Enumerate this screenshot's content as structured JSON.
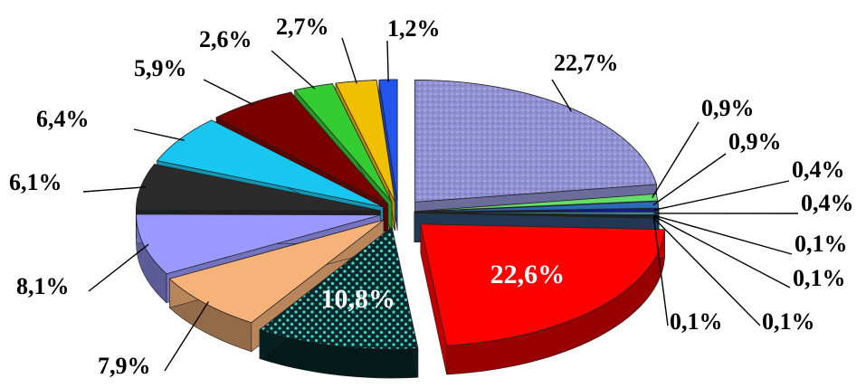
{
  "chart_data": {
    "type": "pie",
    "style": "3d-exploded",
    "slices": [
      {
        "label": "22,7%",
        "value": 22.7,
        "color": "#8f8fd0"
      },
      {
        "label": "0,9%",
        "value": 0.9,
        "color": "#66dd66"
      },
      {
        "label": "0,9%",
        "value": 0.9,
        "color": "#2a6ab8"
      },
      {
        "label": "0,4%",
        "value": 0.4,
        "color": "#1a1a8a"
      },
      {
        "label": "0,4%",
        "value": 0.4,
        "color": "#3a8aa0"
      },
      {
        "label": "0,1%",
        "value": 0.1,
        "color": "#6a9ad0"
      },
      {
        "label": "0,1%",
        "value": 0.1,
        "color": "#406080"
      },
      {
        "label": "0,1%",
        "value": 0.1,
        "color": "#5aa0e0"
      },
      {
        "label": "0,1%",
        "value": 0.1,
        "color": "#2a4a70"
      },
      {
        "label": "22,6%",
        "value": 22.6,
        "color": "#ff0000"
      },
      {
        "label": "10,8%",
        "value": 10.8,
        "color": "#062a2a"
      },
      {
        "label": "7,9%",
        "value": 7.9,
        "color": "#f7b27a"
      },
      {
        "label": "8,1%",
        "value": 8.1,
        "color": "#9999ff"
      },
      {
        "label": "6,1%",
        "value": 6.1,
        "color": "#2b2b2b"
      },
      {
        "label": "6,4%",
        "value": 6.4,
        "color": "#19c6f0"
      },
      {
        "label": "5,9%",
        "value": 5.9,
        "color": "#7a0000"
      },
      {
        "label": "2,6%",
        "value": 2.6,
        "color": "#33cc33"
      },
      {
        "label": "2,7%",
        "value": 2.7,
        "color": "#f0c000"
      },
      {
        "label": "1,2%",
        "value": 1.2,
        "color": "#2255ee"
      }
    ]
  }
}
